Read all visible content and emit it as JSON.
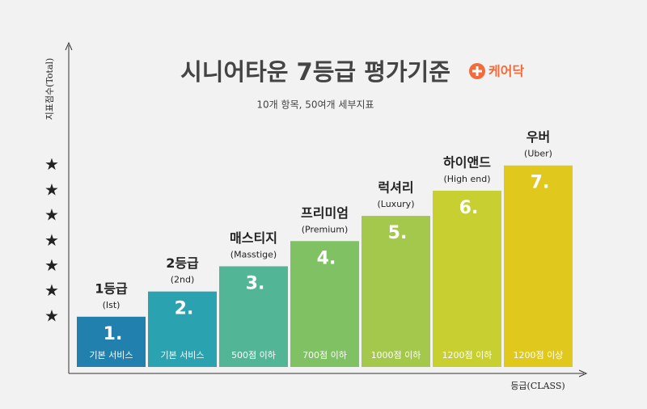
{
  "chart_data": {
    "type": "bar",
    "title": "시니어타운 7등급 평가기준",
    "logo": "케어닥",
    "subtitle": "10개 항목, 50여개 세부지표",
    "y_label": "지표점수(Total)",
    "x_label": "등급(CLASS)",
    "categories": [
      "1등급",
      "2등급",
      "매스티지",
      "프리미엄",
      "럭셔리",
      "하이앤드",
      "우버"
    ],
    "sublabels": [
      "(Ist)",
      "(2nd)",
      "(Masstige)",
      "(Premium)",
      "(Luxury)",
      "(High end)",
      "(Uber)"
    ],
    "bottom_labels": [
      "기본 서비스",
      "기본 서비스",
      "500점 이하",
      "700점 이하",
      "1000점 이하",
      "1200점 이하",
      "1200점 이상"
    ],
    "values": [
      1,
      2,
      3,
      4,
      5,
      6,
      7
    ],
    "value_labels": [
      "1.",
      "2.",
      "3.",
      "4.",
      "5.",
      "6.",
      "7."
    ],
    "colors": [
      "#2180ad",
      "#2ba2b0",
      "#52b696",
      "#7fc163",
      "#a3c84c",
      "#c7cf31",
      "#e1c81c"
    ],
    "ylim": [
      -1.25,
      11.8
    ],
    "yticks": [
      {
        "value": 1,
        "label": "★"
      },
      {
        "value": 2,
        "label": "★"
      },
      {
        "value": 3,
        "label": "★"
      },
      {
        "value": 4,
        "label": "★"
      },
      {
        "value": 5,
        "label": "★"
      },
      {
        "value": 6,
        "label": "★"
      },
      {
        "value": 7,
        "label": "★"
      }
    ],
    "grid": false
  }
}
